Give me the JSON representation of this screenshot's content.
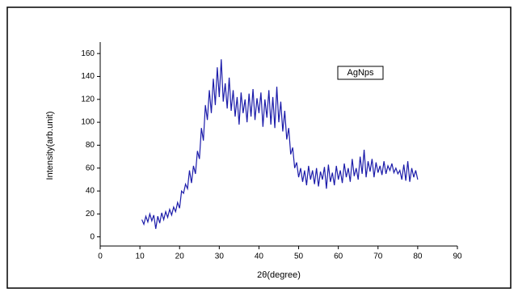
{
  "chart_data": {
    "type": "line",
    "x_label": "2θ(degree)",
    "y_label": "Intensity(arb.unit)",
    "xlim": [
      0,
      90
    ],
    "ylim": [
      -8,
      170
    ],
    "xticks": [
      0,
      10,
      20,
      30,
      40,
      50,
      60,
      70,
      80,
      90
    ],
    "yticks": [
      0,
      20,
      40,
      60,
      80,
      100,
      120,
      140,
      160
    ],
    "grid": false,
    "legend": "upper right",
    "x": [
      10.5,
      11,
      11.5,
      12,
      12.5,
      13,
      13.5,
      14,
      14.5,
      15,
      15.5,
      16,
      16.5,
      17,
      17.5,
      18,
      18.5,
      19,
      19.5,
      20,
      20.5,
      21,
      21.5,
      22,
      22.5,
      23,
      23.5,
      24,
      24.5,
      25,
      25.5,
      26,
      26.5,
      27,
      27.5,
      28,
      28.5,
      29,
      29.5,
      30,
      30.5,
      31,
      31.5,
      32,
      32.5,
      33,
      33.5,
      34,
      34.5,
      35,
      35.5,
      36,
      36.5,
      37,
      37.5,
      38,
      38.5,
      39,
      39.5,
      40,
      40.5,
      41,
      41.5,
      42,
      42.5,
      43,
      43.5,
      44,
      44.5,
      45,
      45.5,
      46,
      46.5,
      47,
      47.5,
      48,
      48.5,
      49,
      49.5,
      50,
      50.5,
      51,
      51.5,
      52,
      52.5,
      53,
      53.5,
      54,
      54.5,
      55,
      55.5,
      56,
      56.5,
      57,
      57.5,
      58,
      58.5,
      59,
      59.5,
      60,
      60.5,
      61,
      61.5,
      62,
      62.5,
      63,
      63.5,
      64,
      64.5,
      65,
      65.5,
      66,
      66.5,
      67,
      67.5,
      68,
      68.5,
      69,
      69.5,
      70,
      70.5,
      71,
      71.5,
      72,
      72.5,
      73,
      73.5,
      74,
      74.5,
      75,
      75.5,
      76,
      76.5,
      77,
      77.5,
      78,
      78.5,
      79,
      79.5,
      80
    ],
    "series": [
      {
        "name": "AgNps",
        "color": "#1c1caa",
        "values": [
          15,
          11,
          18,
          13,
          20,
          14,
          19,
          7,
          18,
          12,
          21,
          15,
          22,
          17,
          24,
          19,
          26,
          22,
          30,
          25,
          40,
          38,
          46,
          42,
          58,
          47,
          62,
          55,
          75,
          68,
          95,
          84,
          115,
          102,
          128,
          108,
          138,
          115,
          148,
          122,
          155,
          118,
          134,
          112,
          139,
          110,
          128,
          105,
          122,
          98,
          126,
          108,
          120,
          100,
          125,
          105,
          129,
          102,
          121,
          108,
          126,
          96,
          120,
          104,
          128,
          98,
          122,
          95,
          131,
          100,
          118,
          92,
          110,
          85,
          95,
          72,
          78,
          60,
          65,
          52,
          60,
          48,
          58,
          45,
          62,
          50,
          58,
          46,
          60,
          44,
          57,
          50,
          61,
          42,
          63,
          48,
          56,
          45,
          62,
          50,
          58,
          47,
          64,
          52,
          60,
          48,
          68,
          53,
          60,
          50,
          70,
          55,
          76,
          52,
          66,
          57,
          68,
          52,
          65,
          56,
          62,
          54,
          66,
          55,
          62,
          58,
          64,
          56,
          60,
          55,
          58,
          50,
          63,
          49,
          66,
          48,
          60,
          52,
          58,
          50
        ]
      }
    ]
  }
}
